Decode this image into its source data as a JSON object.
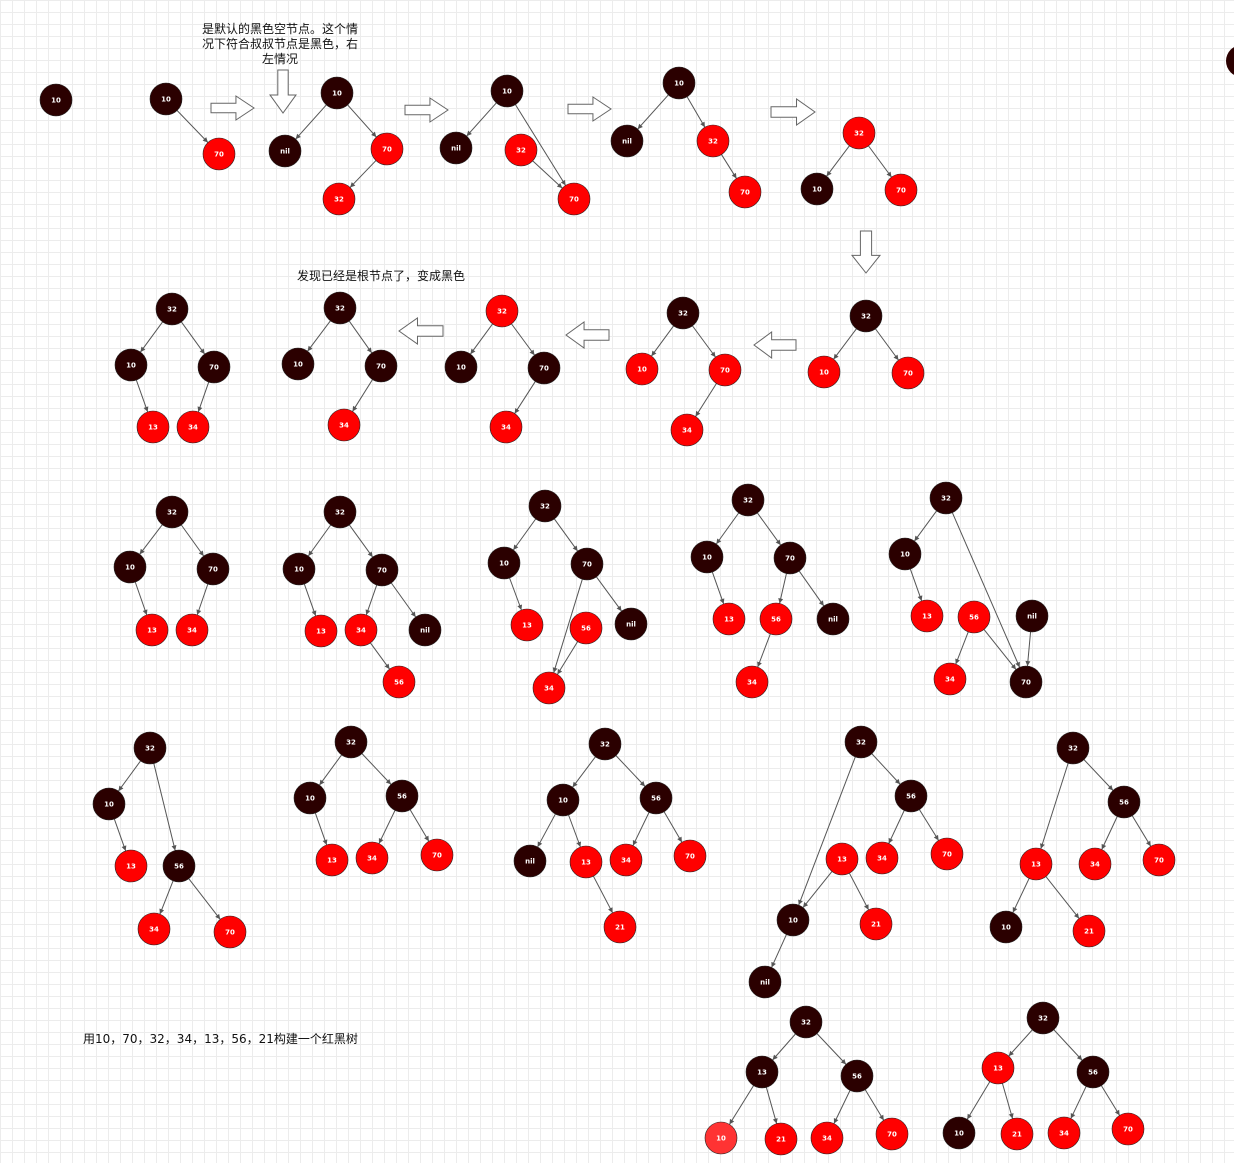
{
  "annotations": {
    "nil_note": "是默认的黑色空节点。这个情况下符合叔叔节点是黑色，右左情况",
    "root_note": "发现已经是根节点了，变成黑色",
    "title": "用10，70，32，34，13，56，21构建一个红黑树"
  },
  "colors": {
    "black_node": "#2b0000",
    "red_node": "#ff0000",
    "red_node_light": "#ff3333",
    "edge": "#555555",
    "arrow_outline": "#666666"
  },
  "trees": [
    {
      "id": "r1-t1",
      "nodes": [
        {
          "label": "10",
          "color": "black"
        }
      ],
      "edges": []
    },
    {
      "id": "r1-t2",
      "nodes": [
        {
          "label": "10",
          "color": "black"
        },
        {
          "label": "70",
          "color": "red"
        }
      ],
      "edges": [
        [
          0,
          1
        ]
      ]
    },
    {
      "id": "r1-t3",
      "nodes": [
        {
          "label": "10",
          "color": "black"
        },
        {
          "label": "nil",
          "color": "black"
        },
        {
          "label": "70",
          "color": "red"
        },
        {
          "label": "32",
          "color": "red"
        }
      ],
      "edges": [
        [
          0,
          1
        ],
        [
          0,
          2
        ],
        [
          2,
          3
        ]
      ]
    },
    {
      "id": "r1-t4",
      "nodes": [
        {
          "label": "10",
          "color": "black"
        },
        {
          "label": "nil",
          "color": "black"
        },
        {
          "label": "32",
          "color": "red"
        },
        {
          "label": "70",
          "color": "red"
        }
      ],
      "edges": [
        [
          0,
          1
        ],
        [
          0,
          3
        ],
        [
          2,
          3
        ]
      ]
    },
    {
      "id": "r1-t5",
      "nodes": [
        {
          "label": "10",
          "color": "black"
        },
        {
          "label": "nil",
          "color": "black"
        },
        {
          "label": "32",
          "color": "red"
        },
        {
          "label": "70",
          "color": "red"
        }
      ],
      "edges": [
        [
          0,
          1
        ],
        [
          0,
          2
        ],
        [
          2,
          3
        ]
      ]
    },
    {
      "id": "r1-t6",
      "nodes": [
        {
          "label": "32",
          "color": "red"
        },
        {
          "label": "10",
          "color": "black"
        },
        {
          "label": "70",
          "color": "red"
        }
      ],
      "edges": [
        [
          0,
          1
        ],
        [
          0,
          2
        ]
      ]
    },
    {
      "id": "r2-t1",
      "nodes": [
        {
          "label": "32",
          "color": "black"
        },
        {
          "label": "10",
          "color": "black"
        },
        {
          "label": "70",
          "color": "black"
        },
        {
          "label": "13",
          "color": "red"
        },
        {
          "label": "34",
          "color": "red"
        }
      ],
      "edges": [
        [
          0,
          1
        ],
        [
          0,
          2
        ],
        [
          1,
          3
        ],
        [
          2,
          4
        ]
      ]
    },
    {
      "id": "r2-t2",
      "nodes": [
        {
          "label": "32",
          "color": "black"
        },
        {
          "label": "10",
          "color": "black"
        },
        {
          "label": "70",
          "color": "black"
        },
        {
          "label": "34",
          "color": "red"
        }
      ],
      "edges": [
        [
          0,
          1
        ],
        [
          0,
          2
        ],
        [
          2,
          3
        ]
      ]
    },
    {
      "id": "r2-t3",
      "nodes": [
        {
          "label": "32",
          "color": "red"
        },
        {
          "label": "10",
          "color": "black"
        },
        {
          "label": "70",
          "color": "black"
        },
        {
          "label": "34",
          "color": "red"
        }
      ],
      "edges": [
        [
          0,
          1
        ],
        [
          0,
          2
        ],
        [
          2,
          3
        ]
      ]
    },
    {
      "id": "r2-t4",
      "nodes": [
        {
          "label": "32",
          "color": "black"
        },
        {
          "label": "10",
          "color": "red"
        },
        {
          "label": "70",
          "color": "red"
        },
        {
          "label": "34",
          "color": "red"
        }
      ],
      "edges": [
        [
          0,
          1
        ],
        [
          0,
          2
        ],
        [
          2,
          3
        ]
      ]
    },
    {
      "id": "r2-t5",
      "nodes": [
        {
          "label": "32",
          "color": "black"
        },
        {
          "label": "10",
          "color": "red"
        },
        {
          "label": "70",
          "color": "red"
        }
      ],
      "edges": [
        [
          0,
          1
        ],
        [
          0,
          2
        ]
      ]
    },
    {
      "id": "r3-t1",
      "nodes": [
        {
          "label": "32",
          "color": "black"
        },
        {
          "label": "10",
          "color": "black"
        },
        {
          "label": "70",
          "color": "black"
        },
        {
          "label": "13",
          "color": "red"
        },
        {
          "label": "34",
          "color": "red"
        }
      ],
      "edges": [
        [
          0,
          1
        ],
        [
          0,
          2
        ],
        [
          1,
          3
        ],
        [
          2,
          4
        ]
      ]
    },
    {
      "id": "r3-t2",
      "nodes": [
        {
          "label": "32",
          "color": "black"
        },
        {
          "label": "10",
          "color": "black"
        },
        {
          "label": "70",
          "color": "black"
        },
        {
          "label": "13",
          "color": "red"
        },
        {
          "label": "34",
          "color": "red"
        },
        {
          "label": "nil",
          "color": "black"
        },
        {
          "label": "56",
          "color": "red"
        }
      ],
      "edges": [
        [
          0,
          1
        ],
        [
          0,
          2
        ],
        [
          1,
          3
        ],
        [
          2,
          4
        ],
        [
          2,
          5
        ],
        [
          4,
          6
        ]
      ]
    },
    {
      "id": "r3-t3",
      "nodes": [
        {
          "label": "32",
          "color": "black"
        },
        {
          "label": "10",
          "color": "black"
        },
        {
          "label": "70",
          "color": "black"
        },
        {
          "label": "13",
          "color": "red"
        },
        {
          "label": "56",
          "color": "red"
        },
        {
          "label": "nil",
          "color": "black"
        },
        {
          "label": "34",
          "color": "red"
        }
      ],
      "edges": [
        [
          0,
          1
        ],
        [
          0,
          2
        ],
        [
          1,
          3
        ],
        [
          2,
          5
        ],
        [
          2,
          6
        ],
        [
          4,
          6
        ]
      ]
    },
    {
      "id": "r3-t4",
      "nodes": [
        {
          "label": "32",
          "color": "black"
        },
        {
          "label": "10",
          "color": "black"
        },
        {
          "label": "70",
          "color": "black"
        },
        {
          "label": "13",
          "color": "red"
        },
        {
          "label": "56",
          "color": "red"
        },
        {
          "label": "nil",
          "color": "black"
        },
        {
          "label": "34",
          "color": "red"
        }
      ],
      "edges": [
        [
          0,
          1
        ],
        [
          0,
          2
        ],
        [
          1,
          3
        ],
        [
          2,
          4
        ],
        [
          2,
          5
        ],
        [
          4,
          6
        ]
      ]
    },
    {
      "id": "r3-t5",
      "nodes": [
        {
          "label": "32",
          "color": "black"
        },
        {
          "label": "10",
          "color": "black"
        },
        {
          "label": "13",
          "color": "red"
        },
        {
          "label": "56",
          "color": "red"
        },
        {
          "label": "nil",
          "color": "black"
        },
        {
          "label": "34",
          "color": "red"
        },
        {
          "label": "70",
          "color": "black"
        }
      ],
      "edges": [
        [
          0,
          1
        ],
        [
          0,
          6
        ],
        [
          1,
          2
        ],
        [
          3,
          5
        ],
        [
          3,
          6
        ],
        [
          4,
          6
        ]
      ]
    },
    {
      "id": "r4-t1",
      "nodes": [
        {
          "label": "32",
          "color": "black"
        },
        {
          "label": "10",
          "color": "black"
        },
        {
          "label": "13",
          "color": "red"
        },
        {
          "label": "56",
          "color": "black"
        },
        {
          "label": "34",
          "color": "red"
        },
        {
          "label": "70",
          "color": "red"
        }
      ],
      "edges": [
        [
          0,
          1
        ],
        [
          0,
          3
        ],
        [
          1,
          2
        ],
        [
          3,
          4
        ],
        [
          3,
          5
        ]
      ]
    },
    {
      "id": "r4-t2",
      "nodes": [
        {
          "label": "32",
          "color": "black"
        },
        {
          "label": "10",
          "color": "black"
        },
        {
          "label": "56",
          "color": "black"
        },
        {
          "label": "13",
          "color": "red"
        },
        {
          "label": "34",
          "color": "red"
        },
        {
          "label": "70",
          "color": "red"
        }
      ],
      "edges": [
        [
          0,
          1
        ],
        [
          0,
          2
        ],
        [
          1,
          3
        ],
        [
          2,
          4
        ],
        [
          2,
          5
        ]
      ]
    },
    {
      "id": "r4-t3",
      "nodes": [
        {
          "label": "32",
          "color": "black"
        },
        {
          "label": "10",
          "color": "black"
        },
        {
          "label": "56",
          "color": "black"
        },
        {
          "label": "nil",
          "color": "black"
        },
        {
          "label": "13",
          "color": "red"
        },
        {
          "label": "34",
          "color": "red"
        },
        {
          "label": "70",
          "color": "red"
        },
        {
          "label": "21",
          "color": "red"
        }
      ],
      "edges": [
        [
          0,
          1
        ],
        [
          0,
          2
        ],
        [
          1,
          3
        ],
        [
          1,
          4
        ],
        [
          2,
          5
        ],
        [
          2,
          6
        ],
        [
          4,
          7
        ]
      ]
    },
    {
      "id": "r4-t4",
      "nodes": [
        {
          "label": "32",
          "color": "black"
        },
        {
          "label": "56",
          "color": "black"
        },
        {
          "label": "13",
          "color": "red"
        },
        {
          "label": "34",
          "color": "red"
        },
        {
          "label": "70",
          "color": "red"
        },
        {
          "label": "21",
          "color": "red"
        },
        {
          "label": "10",
          "color": "black"
        },
        {
          "label": "nil",
          "color": "black"
        }
      ],
      "edges": [
        [
          0,
          1
        ],
        [
          0,
          6
        ],
        [
          1,
          3
        ],
        [
          1,
          4
        ],
        [
          2,
          5
        ],
        [
          2,
          6
        ],
        [
          6,
          7
        ]
      ]
    },
    {
      "id": "r4-t5",
      "nodes": [
        {
          "label": "32",
          "color": "black"
        },
        {
          "label": "56",
          "color": "black"
        },
        {
          "label": "13",
          "color": "red"
        },
        {
          "label": "34",
          "color": "red"
        },
        {
          "label": "70",
          "color": "red"
        },
        {
          "label": "10",
          "color": "black"
        },
        {
          "label": "21",
          "color": "red"
        }
      ],
      "edges": [
        [
          0,
          1
        ],
        [
          0,
          2
        ],
        [
          1,
          3
        ],
        [
          1,
          4
        ],
        [
          2,
          5
        ],
        [
          2,
          6
        ]
      ]
    },
    {
      "id": "r5-t1",
      "nodes": [
        {
          "label": "32",
          "color": "black"
        },
        {
          "label": "13",
          "color": "black"
        },
        {
          "label": "56",
          "color": "black"
        },
        {
          "label": "10",
          "color": "red_light"
        },
        {
          "label": "21",
          "color": "red"
        },
        {
          "label": "34",
          "color": "red"
        },
        {
          "label": "70",
          "color": "red"
        }
      ],
      "edges": [
        [
          0,
          1
        ],
        [
          0,
          2
        ],
        [
          1,
          3
        ],
        [
          1,
          4
        ],
        [
          2,
          5
        ],
        [
          2,
          6
        ]
      ]
    },
    {
      "id": "r5-t2",
      "nodes": [
        {
          "label": "32",
          "color": "black"
        },
        {
          "label": "13",
          "color": "red"
        },
        {
          "label": "56",
          "color": "black"
        },
        {
          "label": "10",
          "color": "black"
        },
        {
          "label": "21",
          "color": "red"
        },
        {
          "label": "34",
          "color": "red"
        },
        {
          "label": "70",
          "color": "red"
        }
      ],
      "edges": [
        [
          0,
          1
        ],
        [
          0,
          2
        ],
        [
          1,
          3
        ],
        [
          1,
          4
        ],
        [
          2,
          5
        ],
        [
          2,
          6
        ]
      ]
    }
  ],
  "arrows": [
    {
      "id": "a1",
      "direction": "right"
    },
    {
      "id": "a2",
      "direction": "down"
    },
    {
      "id": "a3",
      "direction": "right"
    },
    {
      "id": "a4",
      "direction": "right"
    },
    {
      "id": "a5",
      "direction": "right"
    },
    {
      "id": "a6",
      "direction": "down"
    },
    {
      "id": "a7",
      "direction": "left"
    },
    {
      "id": "a8",
      "direction": "left"
    },
    {
      "id": "a9",
      "direction": "left"
    }
  ],
  "edge_node": {
    "color": "black"
  }
}
